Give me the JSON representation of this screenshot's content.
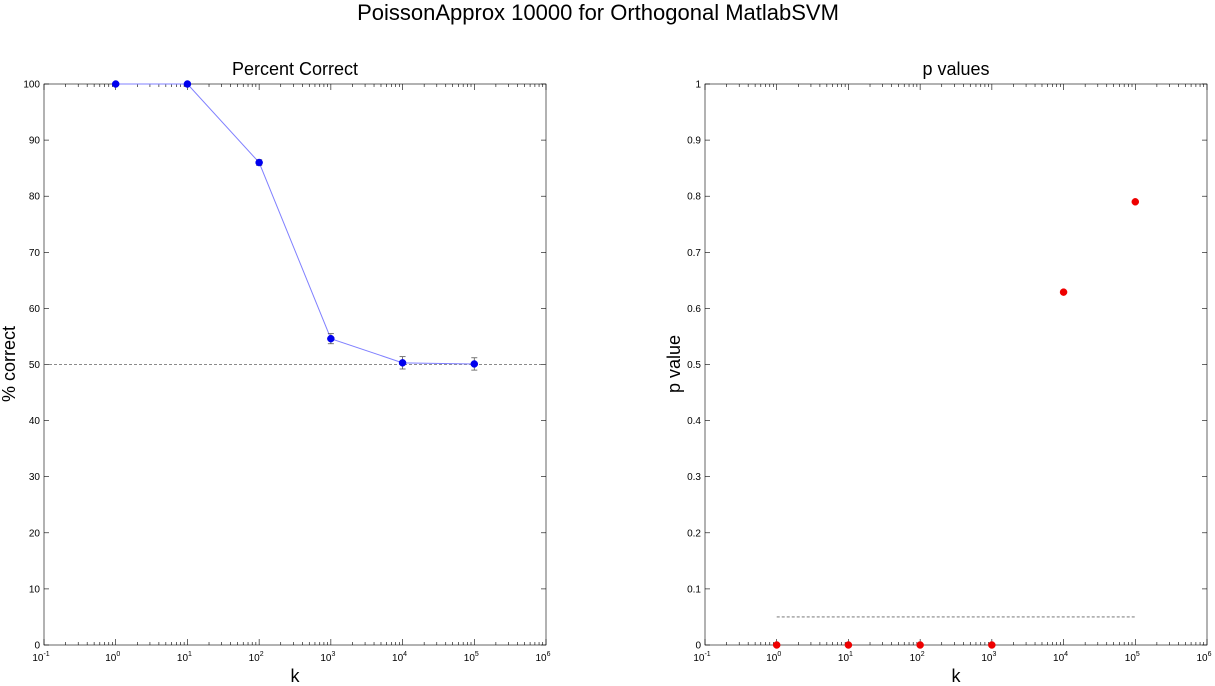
{
  "figure": {
    "title": "PoissonApprox 10000 for Orthogonal MatlabSVM"
  },
  "chart_data": [
    {
      "type": "line",
      "title": "Percent Correct",
      "xlabel": "k",
      "ylabel": "% correct",
      "xscale": "log",
      "xlim": [
        0.1,
        1000000
      ],
      "ylim": [
        0,
        100
      ],
      "x_tick_labels": [
        "10^-1",
        "10^0",
        "10^1",
        "10^2",
        "10^3",
        "10^4",
        "10^5",
        "10^6"
      ],
      "y_tick_labels": [
        "0",
        "10",
        "20",
        "30",
        "40",
        "50",
        "60",
        "70",
        "80",
        "90",
        "100"
      ],
      "grid": false,
      "series": [
        {
          "x": [
            1,
            10,
            100,
            1000,
            10000,
            100000
          ],
          "y": [
            100,
            100,
            86,
            54.6,
            50.3,
            50.1
          ],
          "error": [
            0,
            0,
            0.5,
            0.9,
            1.1,
            1.1
          ],
          "color": "#0000ee",
          "line_color": "#8080ff",
          "marker": "circle"
        }
      ],
      "reference_lines": [
        {
          "y": 50,
          "x_range": [
            0.1,
            1000000
          ],
          "style": "dashed",
          "color": "#666666"
        }
      ]
    },
    {
      "type": "scatter",
      "title": "p values",
      "xlabel": "k",
      "ylabel": "p value",
      "xscale": "log",
      "xlim": [
        0.1,
        1000000
      ],
      "ylim": [
        0,
        1
      ],
      "x_tick_labels": [
        "10^-1",
        "10^0",
        "10^1",
        "10^2",
        "10^3",
        "10^4",
        "10^5",
        "10^6"
      ],
      "y_tick_labels": [
        "0",
        "0.1",
        "0.2",
        "0.3",
        "0.4",
        "0.5",
        "0.6",
        "0.7",
        "0.8",
        "0.9",
        "1"
      ],
      "grid": false,
      "series": [
        {
          "x": [
            1,
            10,
            100,
            1000,
            10000,
            100000
          ],
          "y": [
            0,
            0,
            0,
            0,
            0.629,
            0.79
          ],
          "color": "#ee0000",
          "marker": "circle"
        }
      ],
      "reference_lines": [
        {
          "y": 0.05,
          "x_range": [
            1,
            100000
          ],
          "style": "dashed",
          "color": "#666666"
        }
      ]
    }
  ]
}
